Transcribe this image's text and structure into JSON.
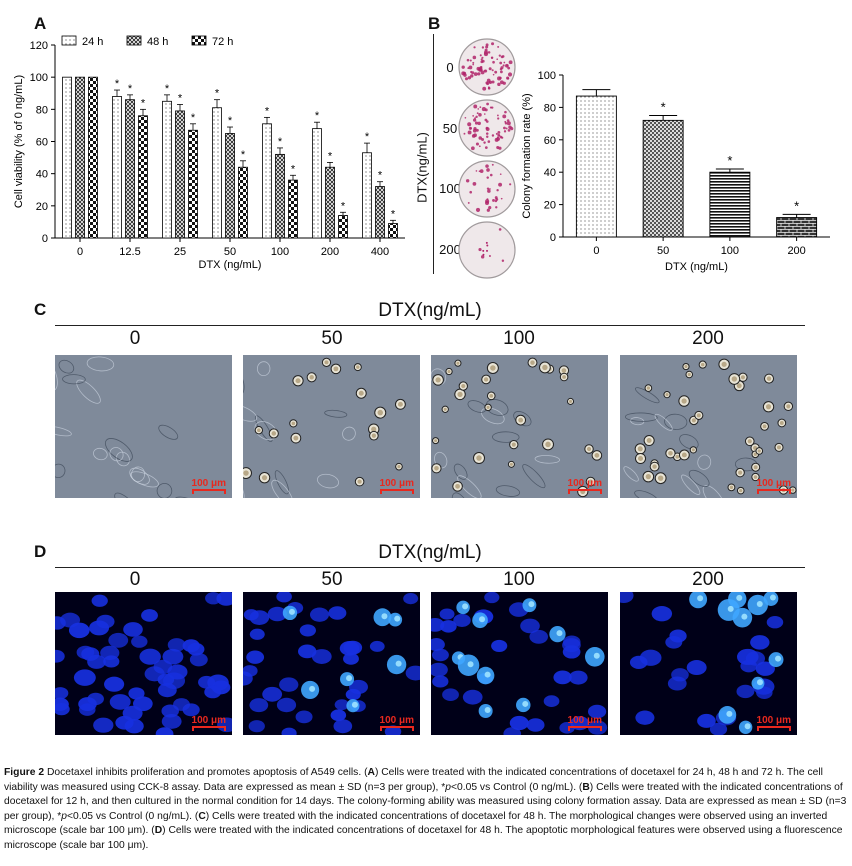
{
  "panels": {
    "A": "A",
    "B": "B",
    "C": "C",
    "D": "D"
  },
  "chart_data": [
    {
      "panel": "A",
      "type": "bar",
      "categories": [
        "0",
        "12.5",
        "25",
        "50",
        "100",
        "200",
        "400"
      ],
      "series": [
        {
          "name": "24 h",
          "values": [
            100,
            88,
            85,
            81,
            71,
            68,
            53
          ],
          "errors": [
            0,
            4,
            4,
            5,
            4,
            4,
            6
          ],
          "sig": [
            false,
            true,
            true,
            true,
            true,
            true,
            true
          ]
        },
        {
          "name": "48 h",
          "values": [
            100,
            86,
            79,
            65,
            52,
            44,
            32
          ],
          "errors": [
            0,
            3,
            4,
            4,
            4,
            3,
            3
          ],
          "sig": [
            false,
            true,
            true,
            true,
            true,
            true,
            true
          ]
        },
        {
          "name": "72 h",
          "values": [
            100,
            76,
            67,
            44,
            36,
            14,
            9
          ],
          "errors": [
            0,
            4,
            4,
            4,
            3,
            2,
            2
          ],
          "sig": [
            false,
            true,
            true,
            true,
            true,
            true,
            true
          ]
        }
      ],
      "xlabel": "DTX (ng/mL)",
      "ylabel": "Cell viability (% of 0 ng/mL)",
      "ylim": [
        0,
        120
      ],
      "yticks": [
        "0",
        "20",
        "40",
        "60",
        "80",
        "100",
        "120"
      ],
      "legend": "top",
      "sig_mark": "*"
    },
    {
      "panel": "B",
      "type": "bar",
      "categories": [
        "0",
        "50",
        "100",
        "200"
      ],
      "values": [
        87,
        72,
        40,
        12
      ],
      "errors": [
        4,
        3,
        2,
        2
      ],
      "sig": [
        false,
        true,
        true,
        true
      ],
      "xlabel": "DTX (ng/mL)",
      "ylabel": "Colony formation rate (%)",
      "ylim": [
        0,
        100
      ],
      "yticks": [
        "0",
        "20",
        "40",
        "60",
        "80",
        "100"
      ],
      "sig_mark": "*"
    }
  ],
  "colonies": {
    "axis_label": "DTX(ng/mL)",
    "doses": [
      "0",
      "50",
      "100",
      "200"
    ],
    "colony_density": [
      0.9,
      0.75,
      0.35,
      0.05
    ]
  },
  "panel_c": {
    "header": "DTX(ng/mL)",
    "doses": [
      "0",
      "50",
      "100",
      "200"
    ],
    "scale_label": "100 μm"
  },
  "panel_d": {
    "header": "DTX(ng/mL)",
    "doses": [
      "0",
      "50",
      "100",
      "200"
    ],
    "scale_label": "100 μm"
  },
  "colors": {
    "fluor_blue": "#1730e0",
    "colony": "#b0246a",
    "scale_red": "#e8281e"
  },
  "caption": {
    "label": "Figure 2",
    "title": "Docetaxel inhibits proliferation and promotes apoptosis of A549 cells.",
    "A_lead": "(",
    "A_letter": "A",
    "A_text": ") Cells were treated with the indicated concentrations of docetaxel for 24 h, 48 h and 72 h. The cell viability was measured using CCK-8 assay. Data are expressed as mean ± SD (n=3 per group), *",
    "p1": "p",
    "A_tail": "<0.05 vs Control (0 ng/mL). (",
    "B_letter": "B",
    "B_text": ") Cells were treated with the indicated concentrations of docetaxel for 12 h, and then cultured in the normal condition for 14 days. The colony-forming ability was measured using colony formation assay. Data are expressed as mean ± SD (n=3 per group), *",
    "p2": "p",
    "B_tail": "<0.05 vs Control (0 ng/mL). (",
    "C_letter": "C",
    "C_text": ") Cells were treated with the indicated concentrations of docetaxel for 48 h. The morphological changes were observed using an inverted microscope (scale bar 100 μm). (",
    "D_letter": "D",
    "D_text": ") Cells were treated with the indicated concentrations of docetaxel for 48 h. The apoptotic morphological features were observed using a fluorescence microscope (scale bar 100 μm)."
  }
}
